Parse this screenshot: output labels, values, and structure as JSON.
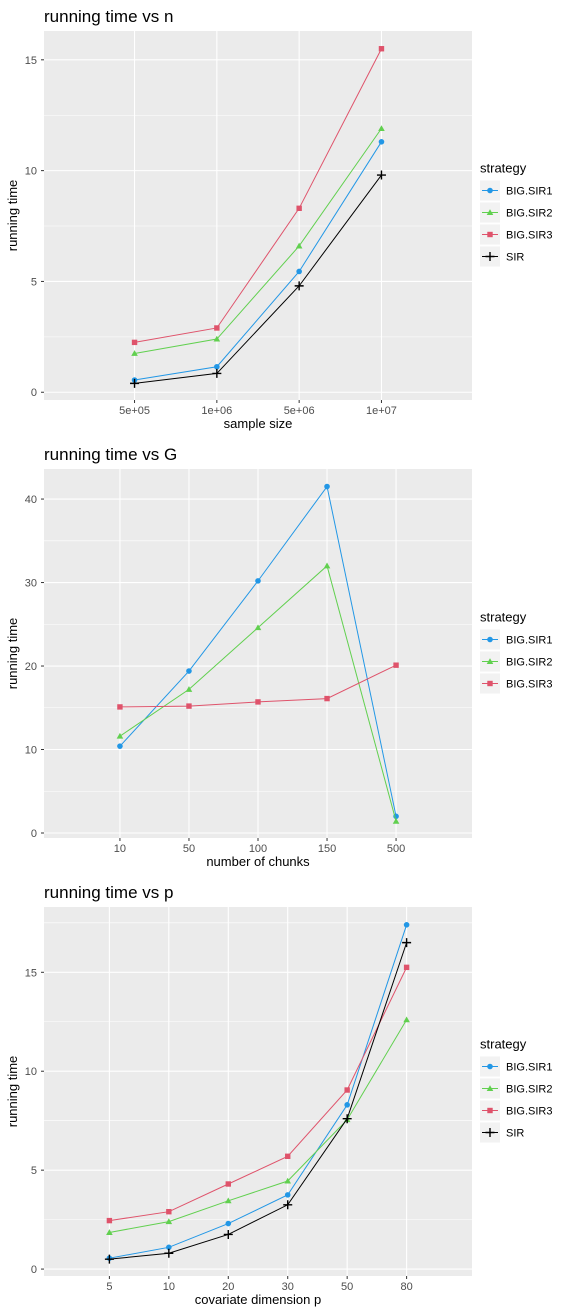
{
  "charts": [
    {
      "title": "running time vs n",
      "xlabel": "sample size",
      "ylabel": "running time",
      "legend_title": "strategy",
      "categories": [
        "5e+05",
        "1e+06",
        "5e+06",
        "1e+07"
      ],
      "yticks": [
        0,
        5,
        10,
        15
      ],
      "ylim": [
        -0.35,
        16.3
      ],
      "series": [
        {
          "name": "BIG.SIR1",
          "values": [
            0.55,
            1.15,
            5.45,
            11.3
          ]
        },
        {
          "name": "BIG.SIR2",
          "values": [
            1.75,
            2.4,
            6.6,
            11.9
          ]
        },
        {
          "name": "BIG.SIR3",
          "values": [
            2.25,
            2.9,
            8.3,
            15.5
          ]
        },
        {
          "name": "SIR",
          "values": [
            0.4,
            0.85,
            4.8,
            9.8
          ]
        }
      ]
    },
    {
      "title": "running time vs G",
      "xlabel": "number of chunks",
      "ylabel": "running time",
      "legend_title": "strategy",
      "categories": [
        "10",
        "50",
        "100",
        "150",
        "500"
      ],
      "yticks": [
        0,
        10,
        20,
        30,
        40
      ],
      "ylim": [
        -0.6,
        43.6
      ],
      "series": [
        {
          "name": "BIG.SIR1",
          "values": [
            10.4,
            19.4,
            30.2,
            41.5,
            2.0
          ]
        },
        {
          "name": "BIG.SIR2",
          "values": [
            11.6,
            17.2,
            24.6,
            32.0,
            1.4
          ]
        },
        {
          "name": "BIG.SIR3",
          "values": [
            15.1,
            15.2,
            15.7,
            16.1,
            20.1
          ]
        }
      ]
    },
    {
      "title": "running time vs p",
      "xlabel": "covariate dimension p",
      "ylabel": "running time",
      "legend_title": "strategy",
      "categories": [
        "5",
        "10",
        "20",
        "30",
        "50",
        "80"
      ],
      "yticks": [
        0,
        5,
        10,
        15
      ],
      "ylim": [
        -0.35,
        18.3
      ],
      "series": [
        {
          "name": "BIG.SIR1",
          "values": [
            0.55,
            1.1,
            2.3,
            3.75,
            8.3,
            17.4
          ]
        },
        {
          "name": "BIG.SIR2",
          "values": [
            1.85,
            2.4,
            3.45,
            4.45,
            7.55,
            12.6
          ]
        },
        {
          "name": "BIG.SIR3",
          "values": [
            2.45,
            2.9,
            4.3,
            5.7,
            9.05,
            15.25
          ]
        },
        {
          "name": "SIR",
          "values": [
            0.5,
            0.8,
            1.75,
            3.25,
            7.6,
            16.5
          ]
        }
      ]
    }
  ],
  "colors": {
    "BIG.SIR1": "#2297E6",
    "BIG.SIR2": "#61D04F",
    "BIG.SIR3": "#DF536B",
    "SIR": "#000000"
  },
  "chart_data": [
    {
      "type": "line",
      "title": "running time vs n",
      "xlabel": "sample size",
      "ylabel": "running time",
      "categories": [
        "5e+05",
        "1e+06",
        "5e+06",
        "1e+07"
      ],
      "ylim": [
        -0.35,
        16.3
      ],
      "legend_position": "right",
      "grid": true,
      "series": [
        {
          "name": "BIG.SIR1",
          "values": [
            0.55,
            1.15,
            5.45,
            11.3
          ]
        },
        {
          "name": "BIG.SIR2",
          "values": [
            1.75,
            2.4,
            6.6,
            11.9
          ]
        },
        {
          "name": "BIG.SIR3",
          "values": [
            2.25,
            2.9,
            8.3,
            15.5
          ]
        },
        {
          "name": "SIR",
          "values": [
            0.4,
            0.85,
            4.8,
            9.8
          ]
        }
      ]
    },
    {
      "type": "line",
      "title": "running time vs G",
      "xlabel": "number of chunks",
      "ylabel": "running time",
      "categories": [
        "10",
        "50",
        "100",
        "150",
        "500"
      ],
      "ylim": [
        -0.6,
        43.6
      ],
      "legend_position": "right",
      "grid": true,
      "series": [
        {
          "name": "BIG.SIR1",
          "values": [
            10.4,
            19.4,
            30.2,
            41.5,
            2.0
          ]
        },
        {
          "name": "BIG.SIR2",
          "values": [
            11.6,
            17.2,
            24.6,
            32.0,
            1.4
          ]
        },
        {
          "name": "BIG.SIR3",
          "values": [
            15.1,
            15.2,
            15.7,
            16.1,
            20.1
          ]
        }
      ]
    },
    {
      "type": "line",
      "title": "running time vs p",
      "xlabel": "covariate dimension p",
      "ylabel": "running time",
      "categories": [
        "5",
        "10",
        "20",
        "30",
        "50",
        "80"
      ],
      "ylim": [
        -0.35,
        18.3
      ],
      "legend_position": "right",
      "grid": true,
      "series": [
        {
          "name": "BIG.SIR1",
          "values": [
            0.55,
            1.1,
            2.3,
            3.75,
            8.3,
            17.4
          ]
        },
        {
          "name": "BIG.SIR2",
          "values": [
            1.85,
            2.4,
            3.45,
            4.45,
            7.55,
            12.6
          ]
        },
        {
          "name": "BIG.SIR3",
          "values": [
            2.45,
            2.9,
            4.3,
            5.7,
            9.05,
            15.25
          ]
        },
        {
          "name": "SIR",
          "values": [
            0.5,
            0.8,
            1.75,
            3.25,
            7.6,
            16.5
          ]
        }
      ]
    }
  ]
}
